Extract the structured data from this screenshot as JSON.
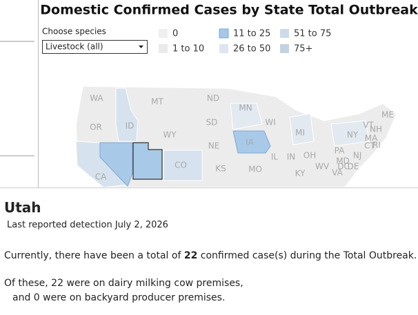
{
  "header": {
    "title": "Domestic Confirmed Cases by State Total Outbreak"
  },
  "filter": {
    "label": "Choose species",
    "value": "Livestock (all)"
  },
  "legend": [
    "0",
    "1 to 10",
    "11 to 25",
    "26 to 50",
    "51 to 75",
    "75+"
  ],
  "map": {
    "state_labels": [
      "WA",
      "MT",
      "ND",
      "MN",
      "OR",
      "ID",
      "SD",
      "WI",
      "MI",
      "NY",
      "VT",
      "NH",
      "ME",
      "MA",
      "CT",
      "RI",
      "WY",
      "NE",
      "IA",
      "PA",
      "NJ",
      "IL",
      "IN",
      "OH",
      "MD",
      "DE",
      "WV",
      "VA",
      "DC",
      "CO",
      "KS",
      "MO",
      "KY",
      "CA"
    ]
  },
  "tooltip": {
    "state": "Utah",
    "last_detection": "Last reported detection July 2, 2026",
    "summary": {
      "before": "Currently, there have been a total of",
      "count": "22",
      "after": "confirmed case(s) during the Total Outbreak."
    },
    "dairy": "Of these, 22 were on dairy milking cow premises,",
    "backyard": "and 0 were on backyard producer premises."
  }
}
